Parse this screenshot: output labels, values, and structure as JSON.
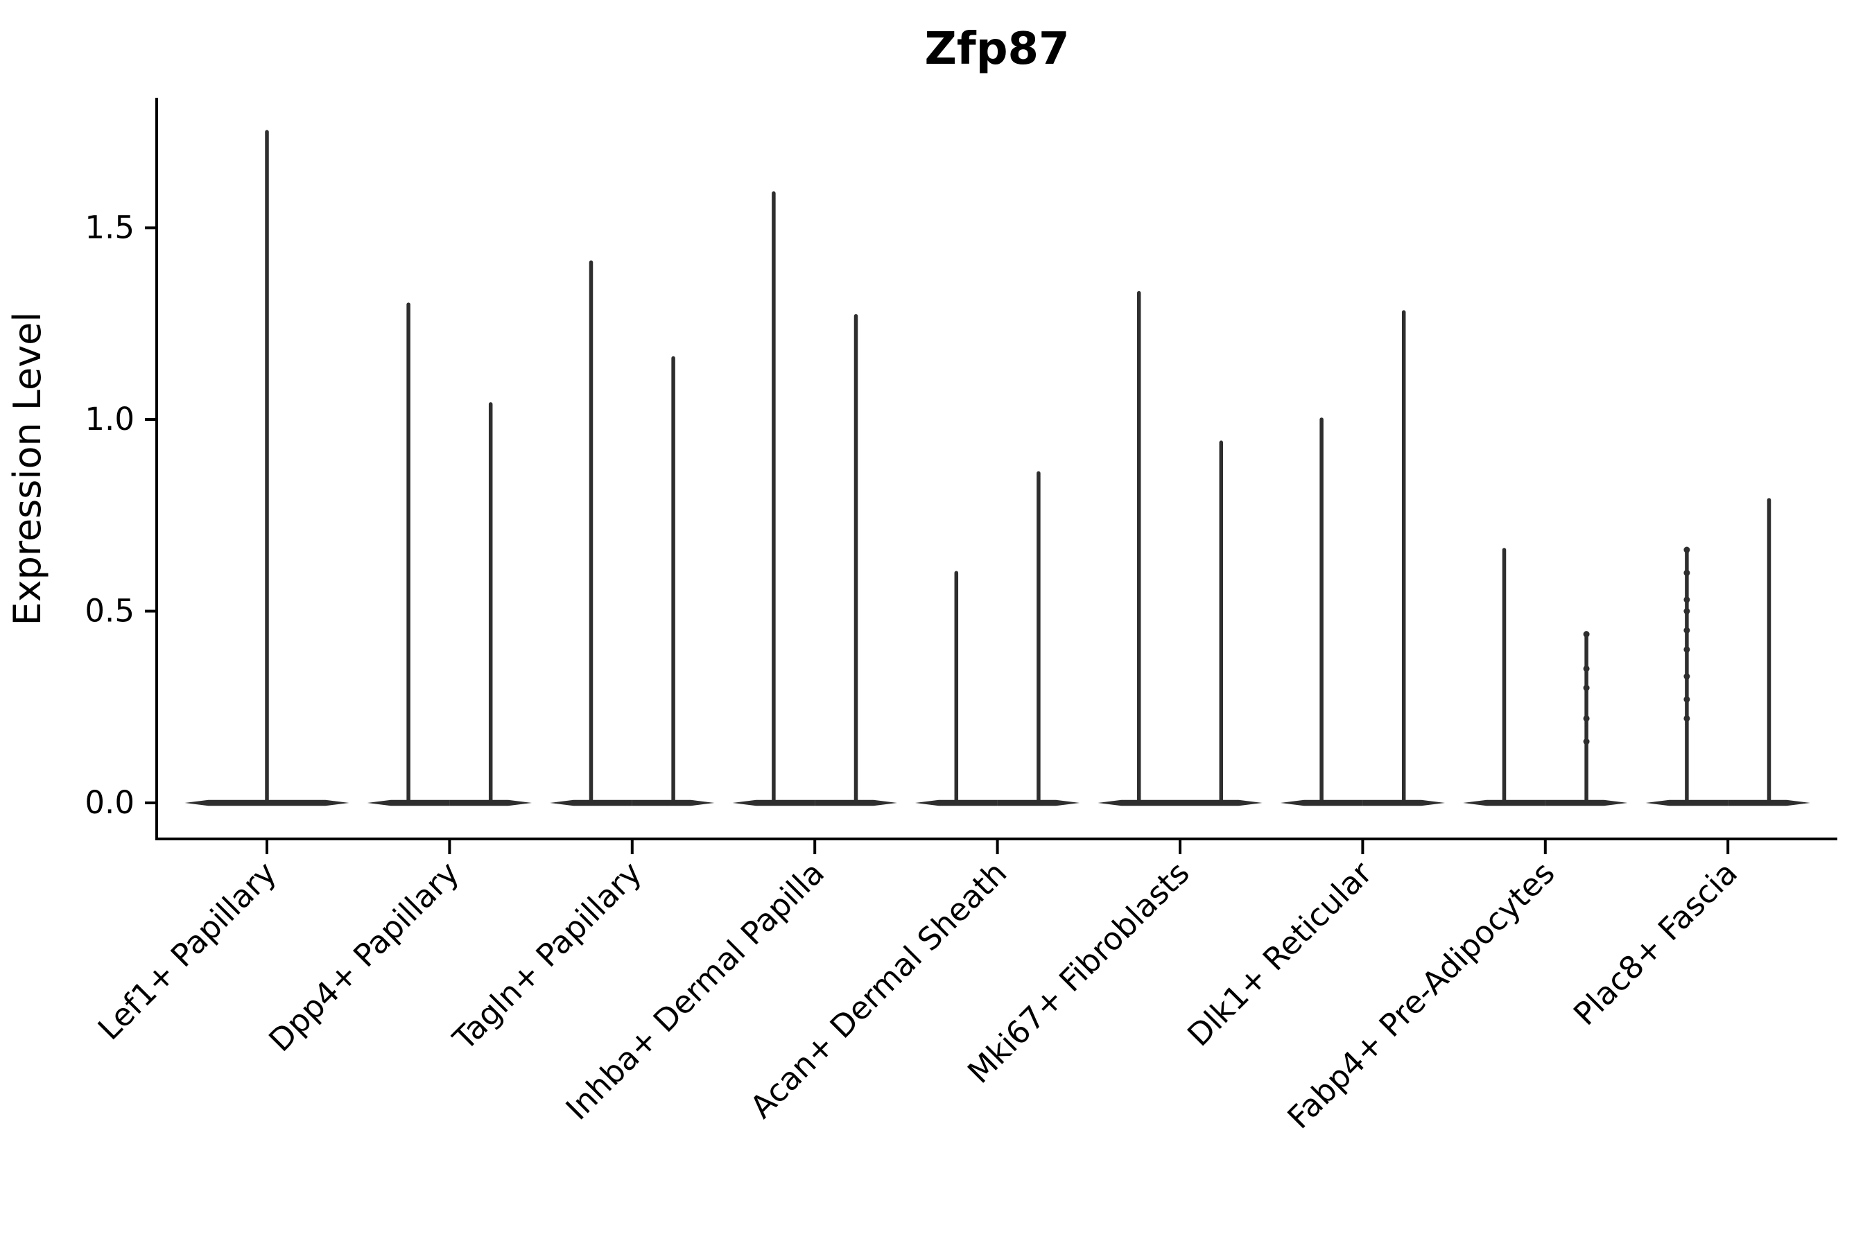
{
  "chart_data": {
    "type": "violin",
    "title": "Zfp87",
    "ylabel": "Expression Level",
    "xlabel": "",
    "background_color": "#ffffff",
    "violin_color": "#2e2e2e",
    "axis_color": "#000000",
    "text_color": "#000000",
    "grid": false,
    "legend": null,
    "ytick_labels": [
      "0.0",
      "0.5",
      "1.0",
      "1.5"
    ],
    "ytick_values": [
      0.0,
      0.5,
      1.0,
      1.5
    ],
    "ylim": [
      -0.09,
      1.84
    ],
    "x_labels_rotation_deg": 45,
    "groups": [
      {
        "label": "Lef1+ Papillary",
        "violins": [
          {
            "min": 0,
            "max": 1.75
          }
        ]
      },
      {
        "label": "Dpp4+ Papillary",
        "violins": [
          {
            "min": 0,
            "max": 1.3
          },
          {
            "min": 0,
            "max": 1.04
          }
        ]
      },
      {
        "label": "Tagln+ Papillary",
        "violins": [
          {
            "min": 0,
            "max": 1.41
          },
          {
            "min": 0,
            "max": 1.16
          }
        ]
      },
      {
        "label": "Inhba+ Dermal Papilla",
        "violins": [
          {
            "min": 0,
            "max": 1.59
          },
          {
            "min": 0,
            "max": 1.27
          }
        ]
      },
      {
        "label": "Acan+ Dermal Sheath",
        "violins": [
          {
            "min": 0,
            "max": 0.6
          },
          {
            "min": 0,
            "max": 0.86
          }
        ]
      },
      {
        "label": "Mki67+ Fibroblasts",
        "violins": [
          {
            "min": 0,
            "max": 1.33
          },
          {
            "min": 0,
            "max": 0.94
          }
        ]
      },
      {
        "label": "Dlk1+ Reticular",
        "violins": [
          {
            "min": 0,
            "max": 1.0
          },
          {
            "min": 0,
            "max": 1.28
          }
        ]
      },
      {
        "label": "Fabp4+ Pre-Adipocytes",
        "violins": [
          {
            "min": 0,
            "max": 0.66
          },
          {
            "min": 0,
            "max": 0.44,
            "dots": [
              0.44,
              0.35,
              0.3,
              0.22,
              0.16
            ]
          }
        ]
      },
      {
        "label": "Plac8+ Fascia",
        "violins": [
          {
            "min": 0,
            "max": 0.66,
            "dots": [
              0.66,
              0.6,
              0.53,
              0.5,
              0.45,
              0.4,
              0.33,
              0.27,
              0.22
            ]
          },
          {
            "min": 0,
            "max": 0.79
          }
        ]
      }
    ]
  }
}
